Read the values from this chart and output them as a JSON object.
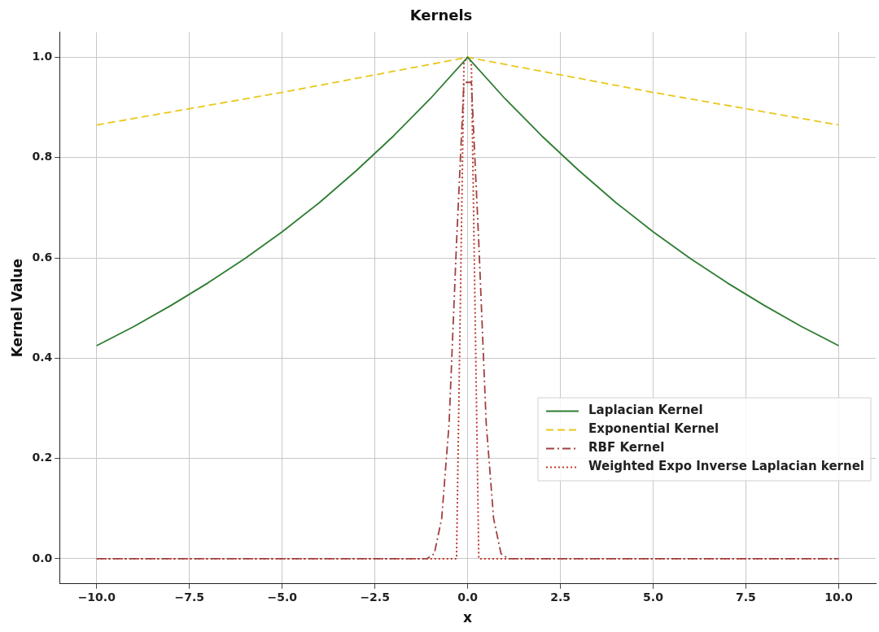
{
  "chart_data": {
    "type": "line",
    "title": "Kernels",
    "xlabel": "x",
    "ylabel": "Kernel Value",
    "xlim": [
      -11,
      11
    ],
    "xticks": [
      {
        "value": -10,
        "label": "−10.0"
      },
      {
        "value": -7.5,
        "label": "−7.5"
      },
      {
        "value": -5,
        "label": "−5.0"
      },
      {
        "value": -2.5,
        "label": "−2.5"
      },
      {
        "value": 0,
        "label": "0.0"
      },
      {
        "value": 2.5,
        "label": "2.5"
      },
      {
        "value": 5,
        "label": "5.0"
      },
      {
        "value": 7.5,
        "label": "7.5"
      },
      {
        "value": 10,
        "label": "10.0"
      }
    ],
    "ylim": [
      -0.05,
      1.05
    ],
    "yticks": [
      {
        "value": 0,
        "label": "0.0"
      },
      {
        "value": 0.2,
        "label": "0.2"
      },
      {
        "value": 0.4,
        "label": "0.4"
      },
      {
        "value": 0.6,
        "label": "0.6"
      },
      {
        "value": 0.8,
        "label": "0.8"
      },
      {
        "value": 1,
        "label": "1.0"
      }
    ],
    "grid": true,
    "legend": "lower right",
    "series": [
      {
        "name": "Laplacian Kernel",
        "color": "#2e7d32",
        "line_style": "solid",
        "x": [
          -10,
          -9,
          -8,
          -7,
          -6,
          -5,
          -4,
          -3,
          -2,
          -1,
          0,
          1,
          2,
          3,
          4,
          5,
          6,
          7,
          8,
          9,
          10
        ],
        "values": [
          0.425,
          0.463,
          0.505,
          0.55,
          0.599,
          0.652,
          0.71,
          0.774,
          0.843,
          0.918,
          1,
          0.918,
          0.843,
          0.774,
          0.71,
          0.652,
          0.599,
          0.55,
          0.505,
          0.463,
          0.425
        ]
      },
      {
        "name": "Exponential Kernel",
        "color": "#e8c81a",
        "line_style": "dashed",
        "x": [
          -10,
          -5,
          0,
          5,
          10
        ],
        "values": [
          0.865,
          0.93,
          1,
          0.93,
          0.865
        ]
      },
      {
        "name": "RBF Kernel",
        "color": "#a0413f",
        "line_style": "dashdot",
        "x": [
          -10,
          -1.3,
          -1.1,
          -0.9,
          -0.7,
          -0.5,
          -0.3,
          -0.1,
          0.1,
          0.3,
          0.5,
          0.7,
          0.9,
          1.1,
          1.3,
          10
        ],
        "values": [
          0,
          0,
          0,
          0.01,
          0.08,
          0.27,
          0.63,
          0.95,
          0.95,
          0.63,
          0.27,
          0.08,
          0.01,
          0,
          0,
          0
        ]
      },
      {
        "name": "Weighted Expo Inverse Laplacian kernel",
        "color": "#c0392b",
        "line_style": "dotted",
        "x": [
          -10,
          -0.3,
          -0.1,
          0,
          0.1,
          0.3,
          10
        ],
        "values": [
          0,
          0,
          0.99,
          1,
          0.99,
          0,
          0
        ]
      }
    ]
  }
}
